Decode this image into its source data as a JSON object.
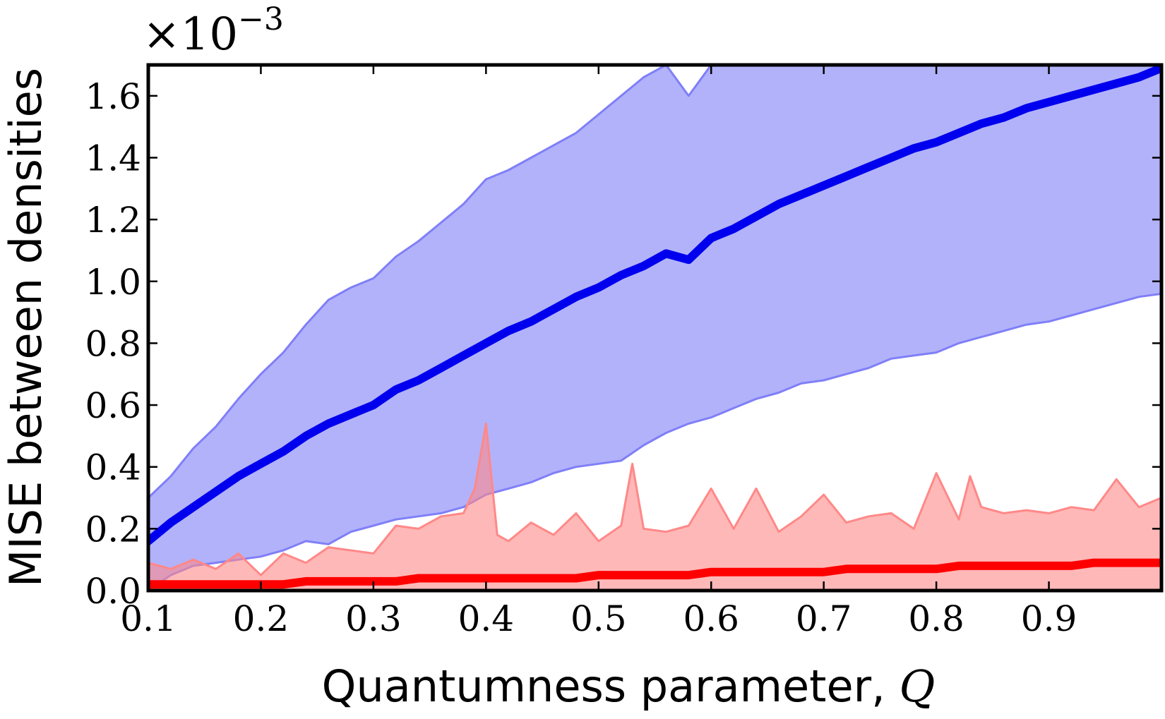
{
  "chart_data": {
    "type": "area",
    "title": "",
    "xlabel": "Quantumness parameter, ",
    "xlabel_symbol": "Q",
    "ylabel": "MISE between densities",
    "y_scale_label": "×10",
    "y_scale_exponent": "−3",
    "xlim": [
      0.1,
      1.0
    ],
    "ylim": [
      0.0,
      1.7
    ],
    "x_ticks": [
      0.1,
      0.2,
      0.3,
      0.4,
      0.5,
      0.6,
      0.7,
      0.8,
      0.9
    ],
    "x_tick_labels": [
      "0.1",
      "0.2",
      "0.3",
      "0.4",
      "0.5",
      "0.6",
      "0.7",
      "0.8",
      "0.9"
    ],
    "y_ticks": [
      0.0,
      0.2,
      0.4,
      0.6,
      0.8,
      1.0,
      1.2,
      1.4,
      1.6
    ],
    "y_tick_labels": [
      "0.0",
      "0.2",
      "0.4",
      "0.6",
      "0.8",
      "1.0",
      "1.2",
      "1.4",
      "1.6"
    ],
    "grid": false,
    "series": [
      {
        "color": "#0000ee",
        "band_color": "#7f7ff8",
        "x": [
          0.1,
          0.12,
          0.14,
          0.16,
          0.18,
          0.2,
          0.22,
          0.24,
          0.26,
          0.28,
          0.3,
          0.32,
          0.34,
          0.36,
          0.38,
          0.4,
          0.42,
          0.44,
          0.46,
          0.48,
          0.5,
          0.52,
          0.54,
          0.56,
          0.58,
          0.6,
          0.62,
          0.64,
          0.66,
          0.68,
          0.7,
          0.72,
          0.74,
          0.76,
          0.78,
          0.8,
          0.82,
          0.84,
          0.86,
          0.88,
          0.9,
          0.92,
          0.94,
          0.96,
          0.98,
          1.0
        ],
        "mean": [
          0.16,
          0.22,
          0.27,
          0.32,
          0.37,
          0.41,
          0.45,
          0.5,
          0.54,
          0.57,
          0.6,
          0.65,
          0.68,
          0.72,
          0.76,
          0.8,
          0.84,
          0.87,
          0.91,
          0.95,
          0.98,
          1.02,
          1.05,
          1.09,
          1.07,
          1.14,
          1.17,
          1.21,
          1.25,
          1.28,
          1.31,
          1.34,
          1.37,
          1.4,
          1.43,
          1.45,
          1.48,
          1.51,
          1.53,
          1.56,
          1.58,
          1.6,
          1.62,
          1.64,
          1.66,
          1.69
        ],
        "upper": [
          0.3,
          0.37,
          0.46,
          0.53,
          0.62,
          0.7,
          0.77,
          0.86,
          0.94,
          0.98,
          1.01,
          1.08,
          1.13,
          1.19,
          1.25,
          1.33,
          1.36,
          1.4,
          1.44,
          1.48,
          1.54,
          1.6,
          1.66,
          1.7,
          1.6,
          1.7,
          1.7,
          1.7,
          1.7,
          1.7,
          1.7,
          1.7,
          1.7,
          1.7,
          1.7,
          1.7,
          1.7,
          1.7,
          1.7,
          1.7,
          1.7,
          1.7,
          1.7,
          1.7,
          1.7,
          1.7
        ],
        "lower": [
          0.0,
          0.05,
          0.08,
          0.09,
          0.1,
          0.11,
          0.13,
          0.16,
          0.15,
          0.19,
          0.21,
          0.23,
          0.24,
          0.25,
          0.27,
          0.31,
          0.33,
          0.35,
          0.38,
          0.4,
          0.41,
          0.42,
          0.47,
          0.51,
          0.54,
          0.56,
          0.59,
          0.62,
          0.64,
          0.67,
          0.68,
          0.7,
          0.72,
          0.75,
          0.76,
          0.77,
          0.8,
          0.82,
          0.84,
          0.86,
          0.87,
          0.89,
          0.91,
          0.93,
          0.95,
          0.96
        ]
      },
      {
        "color": "#ff0000",
        "band_color": "#ff8888",
        "x": [
          0.1,
          0.12,
          0.14,
          0.16,
          0.18,
          0.2,
          0.22,
          0.24,
          0.26,
          0.28,
          0.3,
          0.32,
          0.34,
          0.36,
          0.38,
          0.39,
          0.4,
          0.41,
          0.42,
          0.44,
          0.46,
          0.48,
          0.5,
          0.52,
          0.53,
          0.54,
          0.56,
          0.58,
          0.6,
          0.62,
          0.64,
          0.66,
          0.68,
          0.7,
          0.72,
          0.74,
          0.76,
          0.78,
          0.8,
          0.82,
          0.83,
          0.84,
          0.86,
          0.88,
          0.9,
          0.92,
          0.94,
          0.96,
          0.98,
          1.0
        ],
        "mean": [
          0.02,
          0.02,
          0.02,
          0.02,
          0.02,
          0.02,
          0.02,
          0.03,
          0.03,
          0.03,
          0.03,
          0.03,
          0.04,
          0.04,
          0.04,
          0.04,
          0.04,
          0.04,
          0.04,
          0.04,
          0.04,
          0.04,
          0.05,
          0.05,
          0.05,
          0.05,
          0.05,
          0.05,
          0.06,
          0.06,
          0.06,
          0.06,
          0.06,
          0.06,
          0.07,
          0.07,
          0.07,
          0.07,
          0.07,
          0.08,
          0.08,
          0.08,
          0.08,
          0.08,
          0.08,
          0.08,
          0.09,
          0.09,
          0.09,
          0.09
        ],
        "upper": [
          0.09,
          0.07,
          0.1,
          0.07,
          0.12,
          0.05,
          0.12,
          0.09,
          0.14,
          0.13,
          0.12,
          0.21,
          0.2,
          0.24,
          0.25,
          0.33,
          0.54,
          0.18,
          0.16,
          0.22,
          0.18,
          0.25,
          0.16,
          0.21,
          0.41,
          0.2,
          0.19,
          0.21,
          0.33,
          0.2,
          0.33,
          0.19,
          0.24,
          0.31,
          0.22,
          0.24,
          0.25,
          0.2,
          0.38,
          0.23,
          0.37,
          0.27,
          0.25,
          0.26,
          0.25,
          0.27,
          0.26,
          0.36,
          0.27,
          0.3
        ],
        "lower": [
          0.0,
          0.0,
          0.0,
          0.0,
          0.0,
          0.0,
          0.0,
          0.0,
          0.0,
          0.0,
          0.0,
          0.0,
          0.0,
          0.0,
          0.0,
          0.0,
          0.0,
          0.0,
          0.0,
          0.0,
          0.0,
          0.0,
          0.0,
          0.0,
          0.0,
          0.0,
          0.0,
          0.0,
          0.0,
          0.0,
          0.0,
          0.0,
          0.0,
          0.0,
          0.0,
          0.0,
          0.0,
          0.0,
          0.0,
          0.0,
          0.0,
          0.0,
          0.0,
          0.0,
          0.0,
          0.0,
          0.0,
          0.0,
          0.0,
          0.0
        ]
      }
    ]
  }
}
